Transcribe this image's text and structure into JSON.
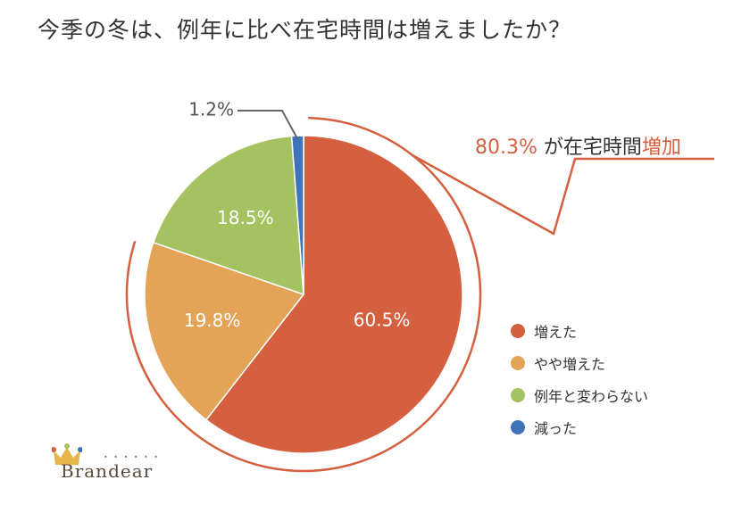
{
  "chart_data": {
    "type": "pie",
    "title": "今季の冬は、例年に比べ在宅時間は増えましたか？",
    "slices": [
      {
        "label": "増えた",
        "value": 60.5,
        "display": "60.5%",
        "color": "#d4603f"
      },
      {
        "label": "やや増えた",
        "value": 19.8,
        "display": "19.8%",
        "color": "#e3a458"
      },
      {
        "label": "例年と変わらない",
        "value": 18.5,
        "display": "18.5%",
        "color": "#a4c25f"
      },
      {
        "label": "減った",
        "value": 1.2,
        "display": "1.2%",
        "color": "#3f74b8"
      }
    ],
    "legend_position": "right",
    "callout": {
      "pct": "80.3%",
      "text": " が在宅時間",
      "highlight": "増加",
      "color": "#d4603f"
    }
  },
  "logo": {
    "text": "Brandear",
    "dots": "• • • • • •"
  }
}
